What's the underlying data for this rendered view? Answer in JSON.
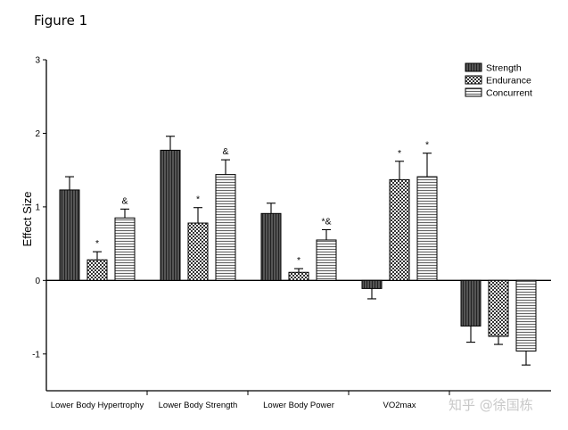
{
  "figure_label": "Figure 1",
  "watermark": "知乎 @徐国栋",
  "chart_data": {
    "type": "bar",
    "title": "",
    "xlabel": "",
    "ylabel": "Effect Size",
    "ylim": [
      -1.5,
      3
    ],
    "yticks": [
      3,
      2,
      1,
      0,
      -1
    ],
    "legend_position": "top-right",
    "grid": false,
    "categories": [
      "Lower Body Hypertrophy",
      "Lower Body Strength",
      "Lower Body Power",
      "VO2max",
      ""
    ],
    "series": [
      {
        "name": "Strength",
        "pattern": "dark-vertical-stripes",
        "values": [
          1.23,
          1.77,
          0.91,
          -0.11,
          -0.62
        ],
        "errors": [
          0.18,
          0.19,
          0.14,
          0.14,
          0.22
        ],
        "annotations": [
          "",
          "",
          "",
          "",
          ""
        ]
      },
      {
        "name": "Endurance",
        "pattern": "checkerboard",
        "values": [
          0.28,
          0.78,
          0.11,
          1.37,
          -0.76
        ],
        "errors": [
          0.11,
          0.21,
          0.05,
          0.25,
          0.11
        ],
        "annotations": [
          "*",
          "*",
          "*",
          "*",
          ""
        ]
      },
      {
        "name": "Concurrent",
        "pattern": "horizontal-stripes",
        "values": [
          0.85,
          1.44,
          0.55,
          1.41,
          -0.96
        ],
        "errors": [
          0.12,
          0.2,
          0.14,
          0.32,
          0.19
        ],
        "annotations": [
          "&",
          "&",
          "*&",
          "*",
          ""
        ]
      }
    ]
  }
}
